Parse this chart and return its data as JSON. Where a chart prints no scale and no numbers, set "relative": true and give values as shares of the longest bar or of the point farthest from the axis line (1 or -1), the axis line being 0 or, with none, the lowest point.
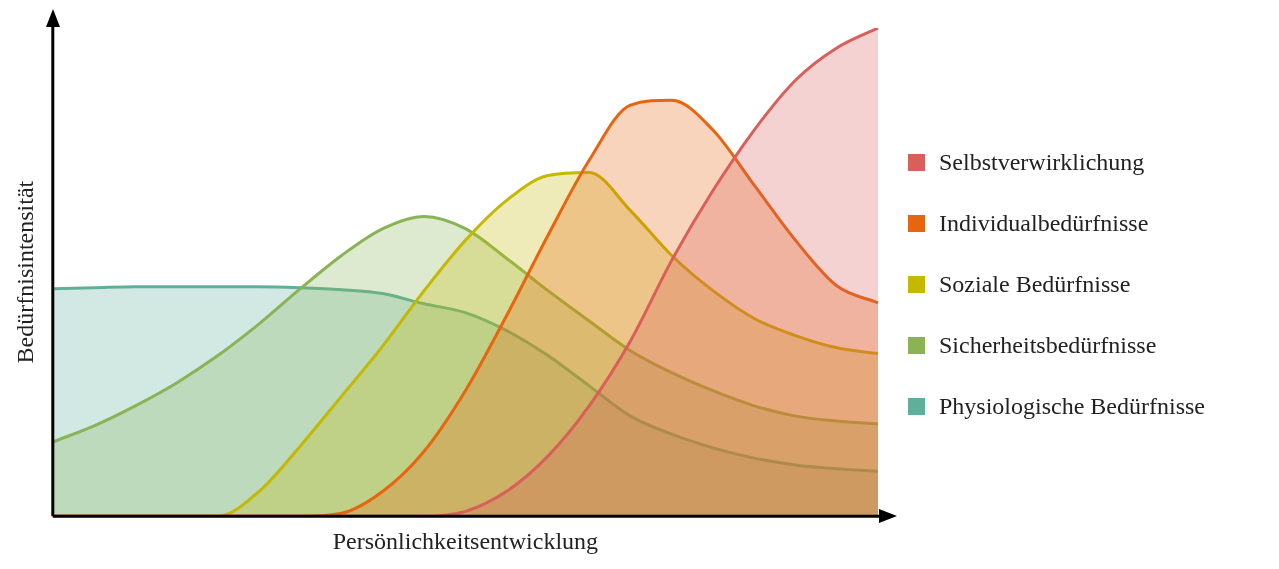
{
  "chart_data": {
    "type": "area",
    "relative": true,
    "xlabel": "Persönlichkeitsentwicklung",
    "ylabel": "Bedürfnisintensität",
    "legend": "right",
    "grid": false,
    "marker": "none",
    "line_style": "solid",
    "categories": [
      null,
      null,
      null,
      null,
      null,
      null,
      null,
      null,
      null,
      null,
      null,
      null,
      null,
      null,
      null,
      null,
      null,
      null,
      null,
      null,
      null
    ],
    "series": [
      {
        "name": "Selbstverwirklichung",
        "color": "#d95f5a",
        "values": [
          0,
          0,
          0,
          0,
          0,
          0,
          0,
          0,
          0,
          0,
          0.01,
          0.051,
          0.123,
          0.226,
          0.359,
          0.524,
          0.667,
          0.791,
          0.893,
          0.959,
          1
        ]
      },
      {
        "name": "Individualbedürfnisse",
        "color": "#e8650f",
        "values": [
          0,
          0,
          0,
          0,
          0,
          0,
          0,
          0.006,
          0.051,
          0.133,
          0.257,
          0.411,
          0.575,
          0.729,
          0.842,
          0.852,
          0.791,
          0.678,
          0.565,
          0.472,
          0.437
        ]
      },
      {
        "name": "Soziale Bedürfnisse",
        "color": "#c4b800",
        "values": [
          0,
          0,
          0,
          0,
          0,
          0.051,
          0.144,
          0.246,
          0.349,
          0.462,
          0.565,
          0.647,
          0.698,
          0.704,
          0.626,
          0.534,
          0.462,
          0.405,
          0.37,
          0.345,
          0.333
        ]
      },
      {
        "name": "Sicherheitsbedürfnisse",
        "color": "#8ab356",
        "values": [
          0.152,
          0.185,
          0.226,
          0.273,
          0.329,
          0.394,
          0.466,
          0.534,
          0.589,
          0.614,
          0.589,
          0.528,
          0.462,
          0.4,
          0.339,
          0.294,
          0.257,
          0.226,
          0.205,
          0.195,
          0.189
        ]
      },
      {
        "name": "Physiologische Bedürfnisse",
        "color": "#5fb09a",
        "values": [
          0.466,
          0.468,
          0.47,
          0.47,
          0.47,
          0.47,
          0.468,
          0.464,
          0.456,
          0.435,
          0.417,
          0.38,
          0.329,
          0.267,
          0.205,
          0.168,
          0.14,
          0.119,
          0.105,
          0.097,
          0.092
        ]
      }
    ]
  }
}
